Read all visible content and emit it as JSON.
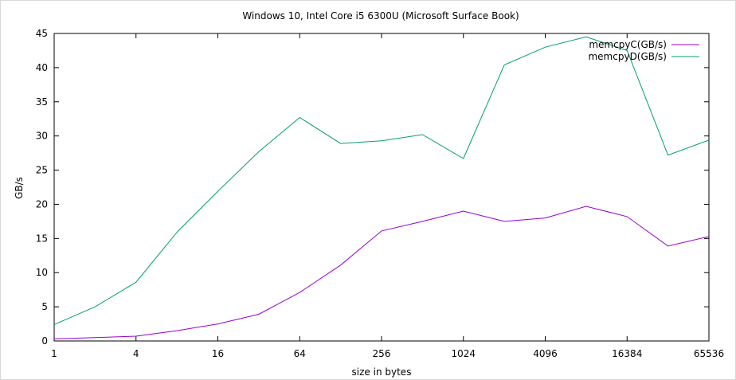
{
  "chart_data": {
    "type": "line",
    "title": "Windows 10, Intel Core i5 6300U (Microsoft Surface Book)",
    "xlabel": "size in bytes",
    "ylabel": "GB/s",
    "xscale": "log2",
    "xlim": [
      1,
      65536
    ],
    "ylim": [
      0,
      45
    ],
    "x_ticks": [
      "1",
      "4",
      "16",
      "64",
      "256",
      "1024",
      "4096",
      "16384",
      "65536"
    ],
    "y_ticks": [
      "0",
      "5",
      "10",
      "15",
      "20",
      "25",
      "30",
      "35",
      "40",
      "45"
    ],
    "grid": false,
    "legend_position": "top-right",
    "x": [
      1,
      2,
      4,
      8,
      16,
      32,
      64,
      128,
      256,
      512,
      1024,
      2048,
      4096,
      8192,
      16384,
      32768,
      65536
    ],
    "series": [
      {
        "name": "memcpyC(GB/s)",
        "color": "#9400d3",
        "values": [
          0.3,
          0.5,
          0.7,
          1.5,
          2.5,
          3.9,
          7.1,
          11.1,
          16.1,
          17.5,
          19.0,
          17.5,
          18.0,
          19.7,
          18.2,
          13.9,
          15.3
        ]
      },
      {
        "name": "memcpyD(GB/s)",
        "color": "#009e73",
        "values": [
          2.4,
          5.0,
          8.6,
          15.9,
          21.9,
          27.7,
          32.7,
          28.9,
          29.3,
          30.2,
          26.7,
          40.4,
          43.0,
          44.5,
          42.5,
          27.2,
          29.4
        ]
      }
    ]
  }
}
